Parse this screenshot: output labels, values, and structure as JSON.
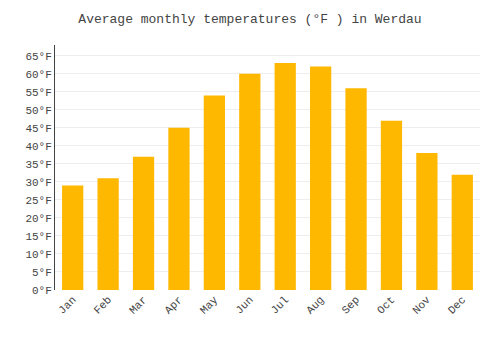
{
  "chart_data": {
    "type": "bar",
    "title": "Average monthly temperatures (°F ) in Werdau",
    "categories": [
      "Jan",
      "Feb",
      "Mar",
      "Apr",
      "May",
      "Jun",
      "Jul",
      "Aug",
      "Sep",
      "Oct",
      "Nov",
      "Dec"
    ],
    "values": [
      29,
      31,
      37,
      45,
      54,
      60,
      63,
      62,
      56,
      47,
      38,
      32
    ],
    "color": "#FFB800",
    "ylim": [
      0,
      68
    ],
    "yticks": [
      {
        "value": 0,
        "label": "0°F"
      },
      {
        "value": 5,
        "label": "5°F"
      },
      {
        "value": 10,
        "label": "10°F"
      },
      {
        "value": 15,
        "label": "15°F"
      },
      {
        "value": 20,
        "label": "20°F"
      },
      {
        "value": 25,
        "label": "25°F"
      },
      {
        "value": 30,
        "label": "30°F"
      },
      {
        "value": 35,
        "label": "35°F"
      },
      {
        "value": 40,
        "label": "40°F"
      },
      {
        "value": 45,
        "label": "45°F"
      },
      {
        "value": 50,
        "label": "50°F"
      },
      {
        "value": 55,
        "label": "55°F"
      },
      {
        "value": 60,
        "label": "60°F"
      },
      {
        "value": 65,
        "label": "65°F"
      }
    ],
    "grid": true
  }
}
